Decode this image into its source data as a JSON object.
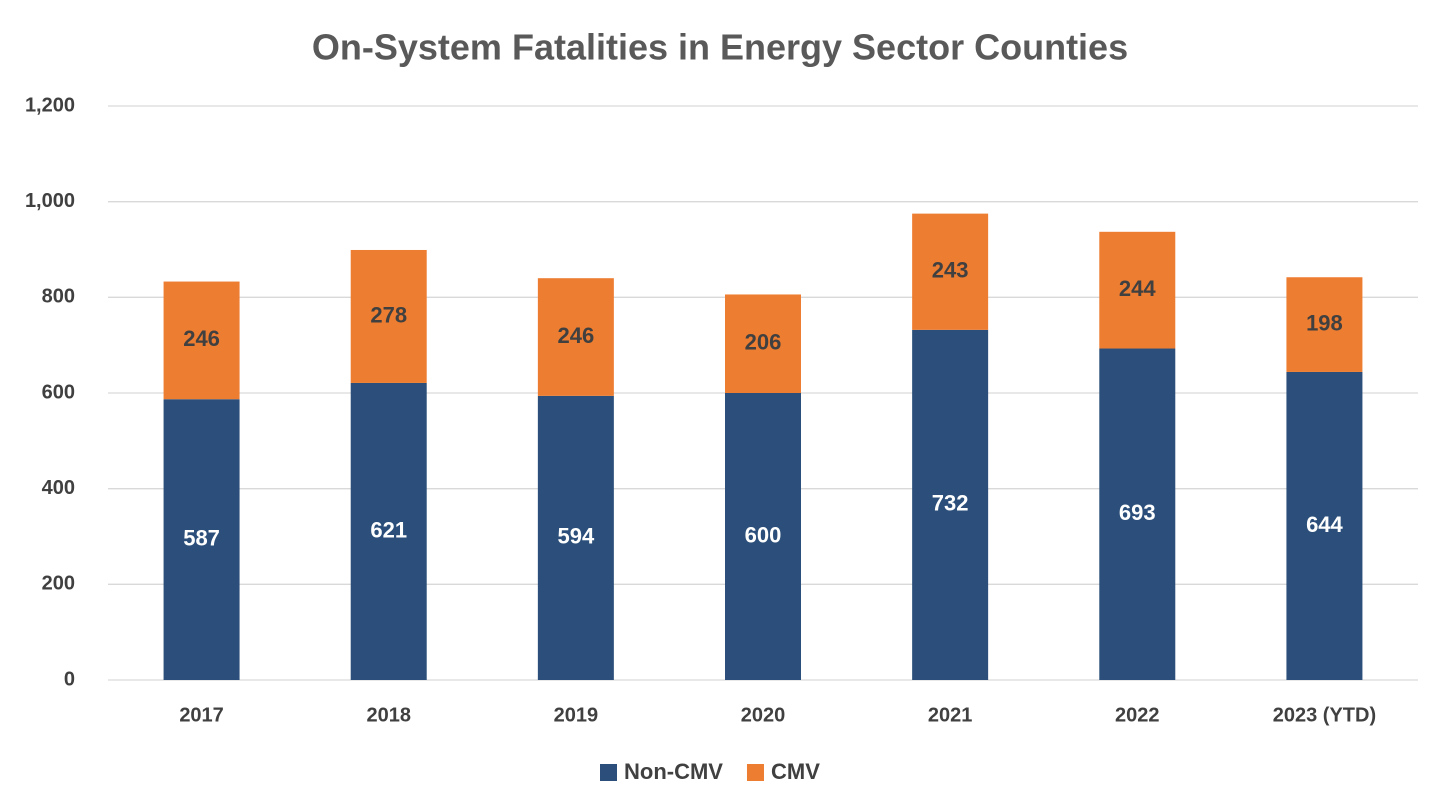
{
  "chart_data": {
    "type": "stacked_bar",
    "title": "On-System Fatalities in Energy Sector Counties",
    "categories": [
      "2017",
      "2018",
      "2019",
      "2020",
      "2021",
      "2022",
      "2023 (YTD)"
    ],
    "series": [
      {
        "name": "Non-CMV",
        "color": "#2b4f7a",
        "values": [
          587,
          621,
          594,
          600,
          732,
          693,
          644
        ]
      },
      {
        "name": "CMV",
        "color": "#ed7d31",
        "values": [
          246,
          278,
          246,
          206,
          243,
          244,
          198
        ]
      }
    ],
    "ylim": [
      0,
      1200
    ],
    "yticks": [
      0,
      200,
      400,
      600,
      800,
      {
        "value": 1000,
        "label": "1,000"
      },
      {
        "value": 1200,
        "label": "1,200"
      }
    ],
    "grid": true,
    "legend": "bottom"
  }
}
